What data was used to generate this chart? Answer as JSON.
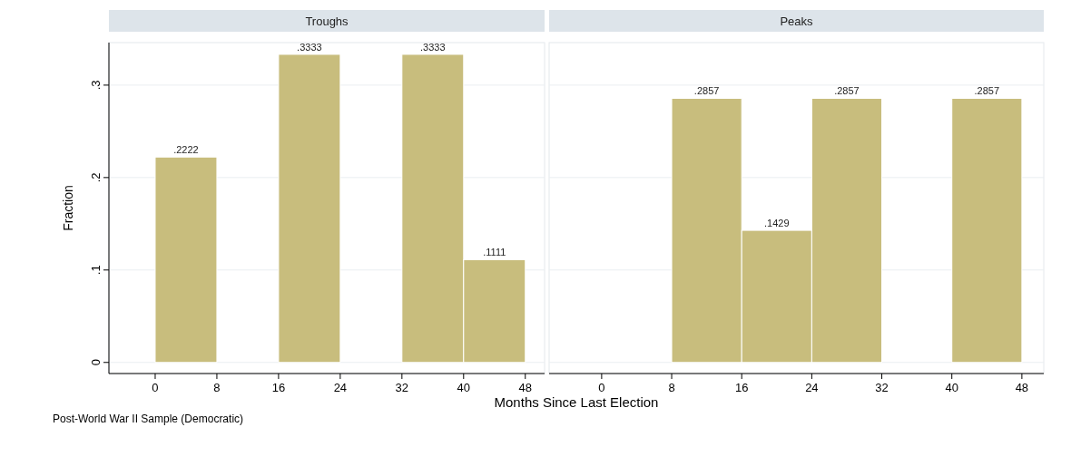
{
  "chart_data": [
    {
      "type": "histogram",
      "title": "Troughs",
      "ylabel": "Fraction",
      "xlabel": "Months Since Last Election",
      "annotations": [
        "Post-World War II Sample (Democratic)"
      ],
      "bins": [
        0,
        8,
        16,
        24,
        32,
        40,
        48
      ],
      "values": [
        0.2222,
        0,
        0.3333,
        0,
        0.3333,
        0.1111
      ],
      "value_labels": [
        ".2222",
        null,
        ".3333",
        null,
        ".3333",
        ".1111"
      ],
      "color": "#c8bd7d",
      "xlim": [
        -6,
        50.5
      ],
      "xticks": [
        0,
        8,
        16,
        24,
        32,
        40,
        48
      ],
      "ylim": [
        -0.012,
        0.346
      ],
      "yticks": [
        {
          "value": 0,
          "label": "0"
        },
        {
          "value": 0.1,
          "label": ".1"
        },
        {
          "value": 0.2,
          "label": ".2"
        },
        {
          "value": 0.3,
          "label": ".3"
        }
      ],
      "grid": "y"
    },
    {
      "type": "histogram",
      "title": "Peaks",
      "bins": [
        0,
        8,
        16,
        24,
        32,
        40,
        48
      ],
      "values": [
        0,
        0.2857,
        0.1429,
        0.2857,
        0,
        0.2857
      ],
      "value_labels": [
        null,
        ".2857",
        ".1429",
        ".2857",
        null,
        ".2857"
      ],
      "color": "#c8bd7d",
      "xlim": [
        -6,
        50.5
      ],
      "xticks": [
        0,
        8,
        16,
        24,
        32,
        40,
        48
      ],
      "ylim": [
        -0.012,
        0.346
      ],
      "yticks": [
        0,
        0.1,
        0.2,
        0.3
      ],
      "grid": "y",
      "tick_labels": "x"
    }
  ]
}
